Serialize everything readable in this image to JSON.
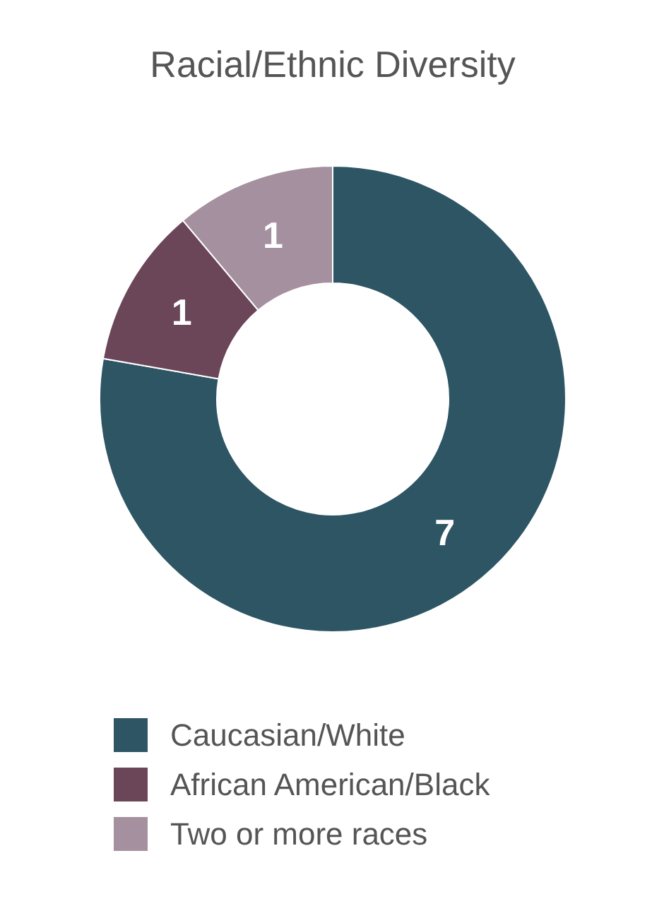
{
  "chart_data": {
    "type": "donut",
    "title": "Racial/Ethnic Diversity",
    "categories": [
      "Caucasian/White",
      "African American/Black",
      "Two or more races"
    ],
    "values": [
      7,
      1,
      1
    ],
    "colors": [
      "#2e5564",
      "#6b4558",
      "#a5909f"
    ],
    "data_labels": true,
    "legend": "bottom"
  }
}
